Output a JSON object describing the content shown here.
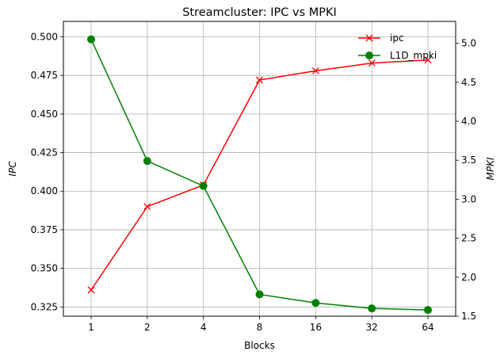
{
  "chart_data": {
    "type": "line",
    "title": "Streamcluster: IPC vs MPKI",
    "xlabel": "Blocks",
    "ylabel": "IPC",
    "y2label": "MPKI",
    "categories": [
      "1",
      "2",
      "4",
      "8",
      "16",
      "32",
      "64"
    ],
    "ylim": [
      0.319,
      0.51
    ],
    "yticks": [
      "0.325",
      "0.350",
      "0.375",
      "0.400",
      "0.425",
      "0.450",
      "0.475",
      "0.500"
    ],
    "y2lim": [
      1.5,
      5.28
    ],
    "y2ticks": [
      "1.5",
      "2.0",
      "2.5",
      "3.0",
      "3.5",
      "4.0",
      "4.5",
      "5.0"
    ],
    "grid": true,
    "legend_position": "top-right",
    "series": [
      {
        "name": "ipc",
        "axis": "left",
        "color": "#ff0000",
        "marker": "x",
        "values": [
          0.336,
          0.39,
          0.404,
          0.472,
          0.478,
          0.483,
          0.485
        ]
      },
      {
        "name": "L1D_mpki",
        "axis": "right",
        "color": "#008000",
        "marker": "circle",
        "values": [
          5.05,
          3.49,
          3.17,
          1.78,
          1.67,
          1.6,
          1.58
        ]
      }
    ]
  }
}
